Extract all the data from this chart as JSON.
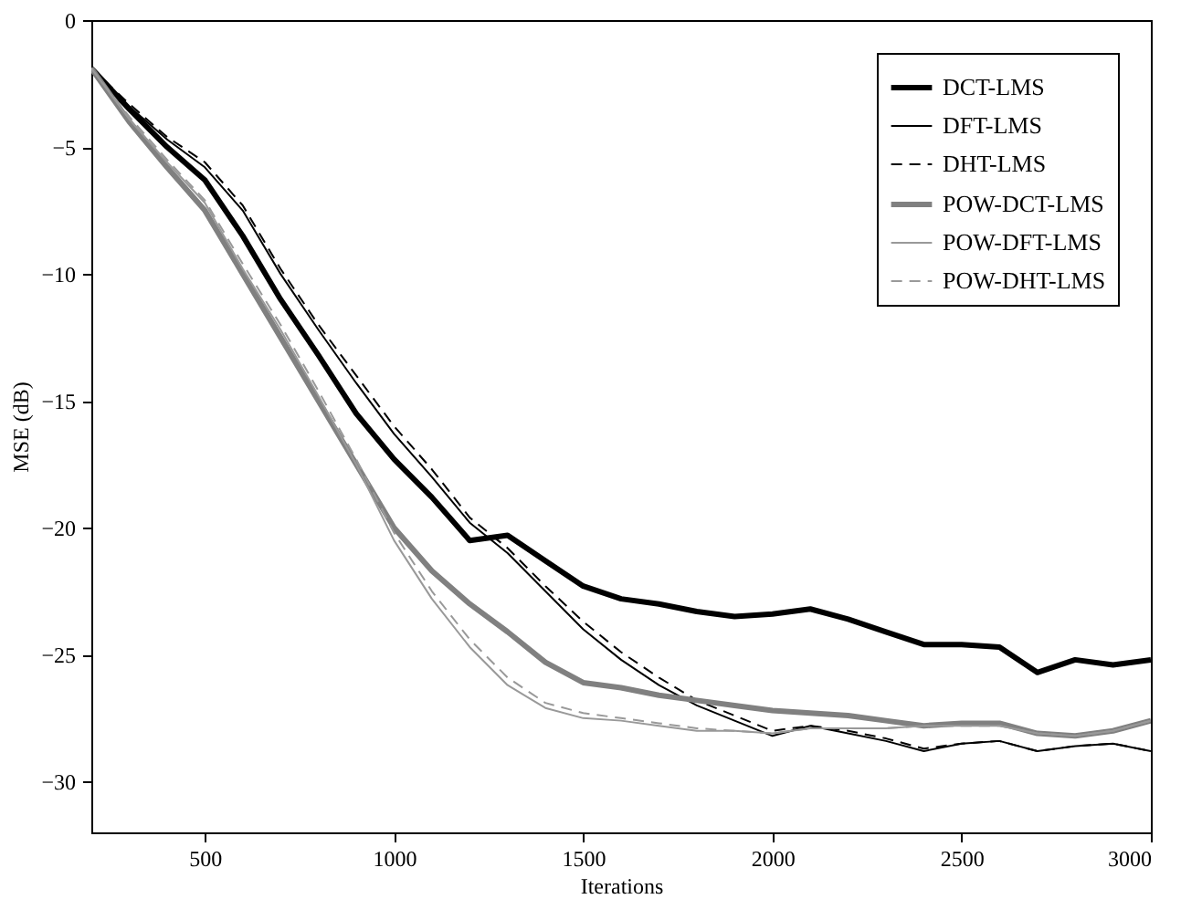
{
  "chart_data": {
    "type": "line",
    "xlabel": "Iterations",
    "ylabel": "MSE (dB)",
    "x": [
      200,
      300,
      400,
      500,
      600,
      700,
      800,
      900,
      1000,
      1100,
      1200,
      1300,
      1400,
      1500,
      1600,
      1700,
      1800,
      1900,
      2000,
      2100,
      2200,
      2300,
      2400,
      2500,
      2600,
      2700,
      2800,
      2900,
      3000
    ],
    "series": [
      {
        "name": "DCT-LMS",
        "color": "#000000",
        "line_style": "solid",
        "values": [
          -1.9,
          -3.5,
          -5,
          -6.3,
          -8.5,
          -11,
          -13.2,
          -15.5,
          -17.3,
          -18.8,
          -20.5,
          -20.3,
          -21.3,
          -22.3,
          -22.8,
          -23,
          -23.3,
          -23.5,
          -23.4,
          -23.2,
          -23.6,
          -24.1,
          -24.6,
          -24.6,
          -24.7,
          -25.7,
          -25.2,
          -25.4,
          -25.2
        ]
      },
      {
        "name": "DFT-LMS",
        "color": "#000000",
        "line_style": "solid",
        "values": [
          -1.9,
          -3.4,
          -4.7,
          -5.8,
          -7.5,
          -10,
          -12.2,
          -14.3,
          -16.3,
          -18,
          -19.8,
          -21,
          -22.5,
          -24,
          -25.2,
          -26.2,
          -27,
          -27.6,
          -28.2,
          -27.8,
          -28.1,
          -28.4,
          -28.8,
          -28.5,
          -28.4,
          -28.8,
          -28.6,
          -28.5,
          -28.8
        ]
      },
      {
        "name": "DHT-LMS",
        "color": "#000000",
        "line_style": "dashed",
        "values": [
          -1.9,
          -3.3,
          -4.6,
          -5.6,
          -7.3,
          -9.8,
          -12,
          -14,
          -16,
          -17.7,
          -19.6,
          -20.8,
          -22.3,
          -23.7,
          -24.9,
          -25.9,
          -26.8,
          -27.4,
          -28,
          -27.8,
          -28,
          -28.3,
          -28.7,
          -28.5,
          -28.4,
          -28.8,
          -28.6,
          -28.5,
          -28.8
        ]
      },
      {
        "name": "POW-DCT-LMS",
        "color": "#808080",
        "line_style": "solid",
        "values": [
          -1.9,
          -4,
          -5.8,
          -7.5,
          -10,
          -12.5,
          -15,
          -17.5,
          -20,
          -21.7,
          -23,
          -24.1,
          -25.3,
          -26.1,
          -26.3,
          -26.6,
          -26.8,
          -27,
          -27.2,
          -27.3,
          -27.4,
          -27.6,
          -27.8,
          -27.7,
          -27.7,
          -28.1,
          -28.2,
          -28,
          -27.6
        ]
      },
      {
        "name": "POW-DFT-LMS",
        "color": "#999999",
        "line_style": "solid",
        "values": [
          -1.9,
          -3.9,
          -5.6,
          -7.2,
          -9.8,
          -12.2,
          -14.8,
          -17.5,
          -20.5,
          -22.8,
          -24.7,
          -26.2,
          -27.1,
          -27.5,
          -27.6,
          -27.8,
          -28,
          -28,
          -28.1,
          -27.9,
          -27.9,
          -27.9,
          -27.8,
          -27.8,
          -27.8,
          -28.1,
          -28.2,
          -28,
          -27.6
        ]
      },
      {
        "name": "POW-DHT-LMS",
        "color": "#999999",
        "line_style": "dashed",
        "values": [
          -1.9,
          -3.8,
          -5.5,
          -7.1,
          -9.6,
          -12,
          -14.6,
          -17.3,
          -20.2,
          -22.5,
          -24.4,
          -25.9,
          -26.9,
          -27.3,
          -27.5,
          -27.7,
          -27.9,
          -28,
          -28.1,
          -27.9,
          -27.9,
          -27.9,
          -27.8,
          -27.8,
          -27.8,
          -28.1,
          -28.2,
          -28,
          -27.6
        ]
      }
    ],
    "xlim": [
      200,
      3000
    ],
    "xticks": [
      500,
      1000,
      1500,
      2000,
      2500,
      3000
    ],
    "ylim": [
      -32,
      0
    ],
    "yticks": [
      -30,
      -25,
      -20,
      -15,
      -10,
      -5,
      0
    ],
    "grid": false,
    "legend": "top right"
  }
}
